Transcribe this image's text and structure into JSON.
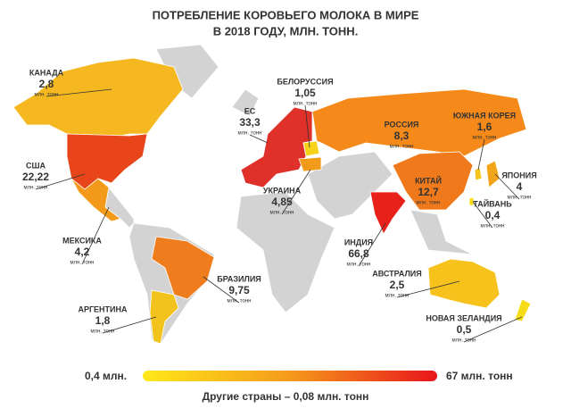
{
  "title": [
    "ПОТРЕБЛЕНИЕ КОРОВЬЕГО МОЛОКА В МИРЕ",
    "В 2018 ГОДУ, МЛН. ТОНН."
  ],
  "unit": "млн. тонн",
  "countries": [
    {
      "name": "КАНАДА",
      "value": "2,8",
      "color": "#f6b820"
    },
    {
      "name": "США",
      "value": "22,22",
      "color": "#e8461a"
    },
    {
      "name": "МЕКСИКА",
      "value": "4,2",
      "color": "#f39a1a"
    },
    {
      "name": "АРГЕНТИНА",
      "value": "1,8",
      "color": "#f3c31d"
    },
    {
      "name": "БРАЗИЛИЯ",
      "value": "9,75",
      "color": "#ef7d1d"
    },
    {
      "name": "ЕС",
      "value": "33,3",
      "color": "#e0302a"
    },
    {
      "name": "БЕЛОРУССИЯ",
      "value": "1,05",
      "color": "#f6d21a"
    },
    {
      "name": "УКРАИНА",
      "value": "4,85",
      "color": "#f29a1a"
    },
    {
      "name": "РОССИЯ",
      "value": "8,3",
      "color": "#f58a1b"
    },
    {
      "name": "ЮЖНАЯ КОРЕЯ",
      "value": "1,6",
      "color": "#f6c41d"
    },
    {
      "name": "ЯПОНИЯ",
      "value": "4",
      "color": "#f3a51a"
    },
    {
      "name": "ТАЙВАНЬ",
      "value": "0,4",
      "color": "#f7e01a"
    },
    {
      "name": "КИТАЙ",
      "value": "12,7",
      "color": "#f07a1b"
    },
    {
      "name": "ИНДИЯ",
      "value": "66,8",
      "color": "#e8211b"
    },
    {
      "name": "АВСТРАЛИЯ",
      "value": "2,5",
      "color": "#f7c21b"
    },
    {
      "name": "НОВАЯ ЗЕЛАНДИЯ",
      "value": "0,5",
      "color": "#f7dc1a"
    }
  ],
  "legend": {
    "min_label": "0,4 млн.",
    "max_label": "67 млн. тонн",
    "other_label": "Другие страны – 0,08 млн. тонн"
  }
}
